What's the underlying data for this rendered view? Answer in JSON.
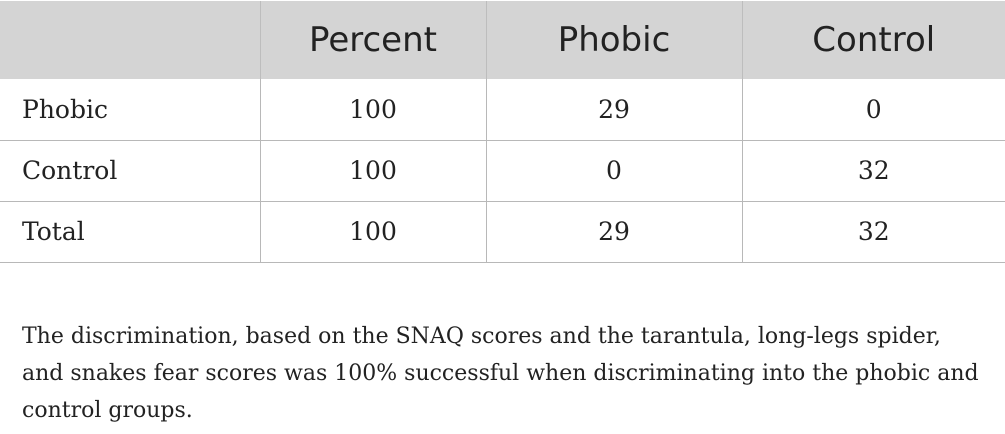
{
  "table": {
    "headers": [
      "",
      "Percent",
      "Phobic",
      "Control"
    ],
    "rows": [
      [
        "Phobic",
        "100",
        "29",
        "0"
      ],
      [
        "Control",
        "100",
        "0",
        "32"
      ],
      [
        "Total",
        "100",
        "29",
        "32"
      ]
    ]
  },
  "footnote": "The discrimination, based on the SNAQ scores and the tarantula, long-legs spider, and snakes fear scores was 100% successful when discriminating into the phobic and control groups.",
  "colors": {
    "header_background": "#d4d4d4",
    "grid_lines": "#b8b8b8",
    "text": "#222222"
  }
}
